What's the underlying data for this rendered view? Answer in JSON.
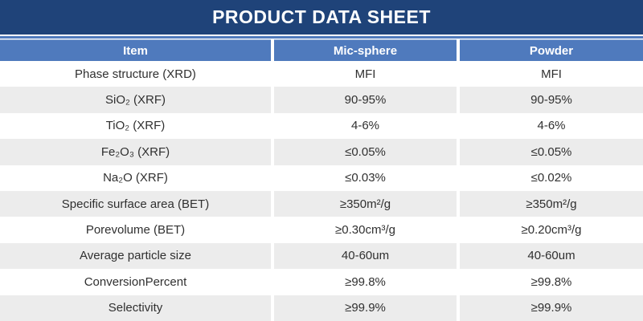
{
  "banner": {
    "title": "PRODUCT DATA SHEET"
  },
  "table": {
    "columns": [
      "Item",
      "Mic-sphere",
      "Powder"
    ],
    "rows": [
      {
        "item": "Phase structure (XRD)",
        "mic_sphere": "MFI",
        "powder": "MFI"
      },
      {
        "item": "SiO₂ (XRF)",
        "mic_sphere": "90-95%",
        "powder": "90-95%"
      },
      {
        "item": "TiO₂ (XRF)",
        "mic_sphere": "4-6%",
        "powder": "4-6%"
      },
      {
        "item": "Fe₂O₃ (XRF)",
        "mic_sphere": "≤0.05%",
        "powder": "≤0.05%"
      },
      {
        "item": "Na₂O (XRF)",
        "mic_sphere": "≤0.03%",
        "powder": "≤0.02%"
      },
      {
        "item": "Specific surface area (BET)",
        "mic_sphere": "≥350m²/g",
        "powder": "≥350m²/g"
      },
      {
        "item": "Porevolume (BET)",
        "mic_sphere": "≥0.30cm³/g",
        "powder": "≥0.20cm³/g"
      },
      {
        "item": "Average particle size",
        "mic_sphere": "40-60um",
        "powder": "40-60um"
      },
      {
        "item": "ConversionPercent",
        "mic_sphere": "≥99.8%",
        "powder": "≥99.8%"
      },
      {
        "item": "Selectivity",
        "mic_sphere": "≥99.9%",
        "powder": "≥99.9%"
      }
    ]
  },
  "colors": {
    "banner_bg": "#1F4379",
    "header_bg": "#4F7ABD",
    "sep_line": "#4F7ABD",
    "row_alt_bg": "#ECECEC",
    "text": "#303030",
    "header_text": "#FFFFFF"
  }
}
